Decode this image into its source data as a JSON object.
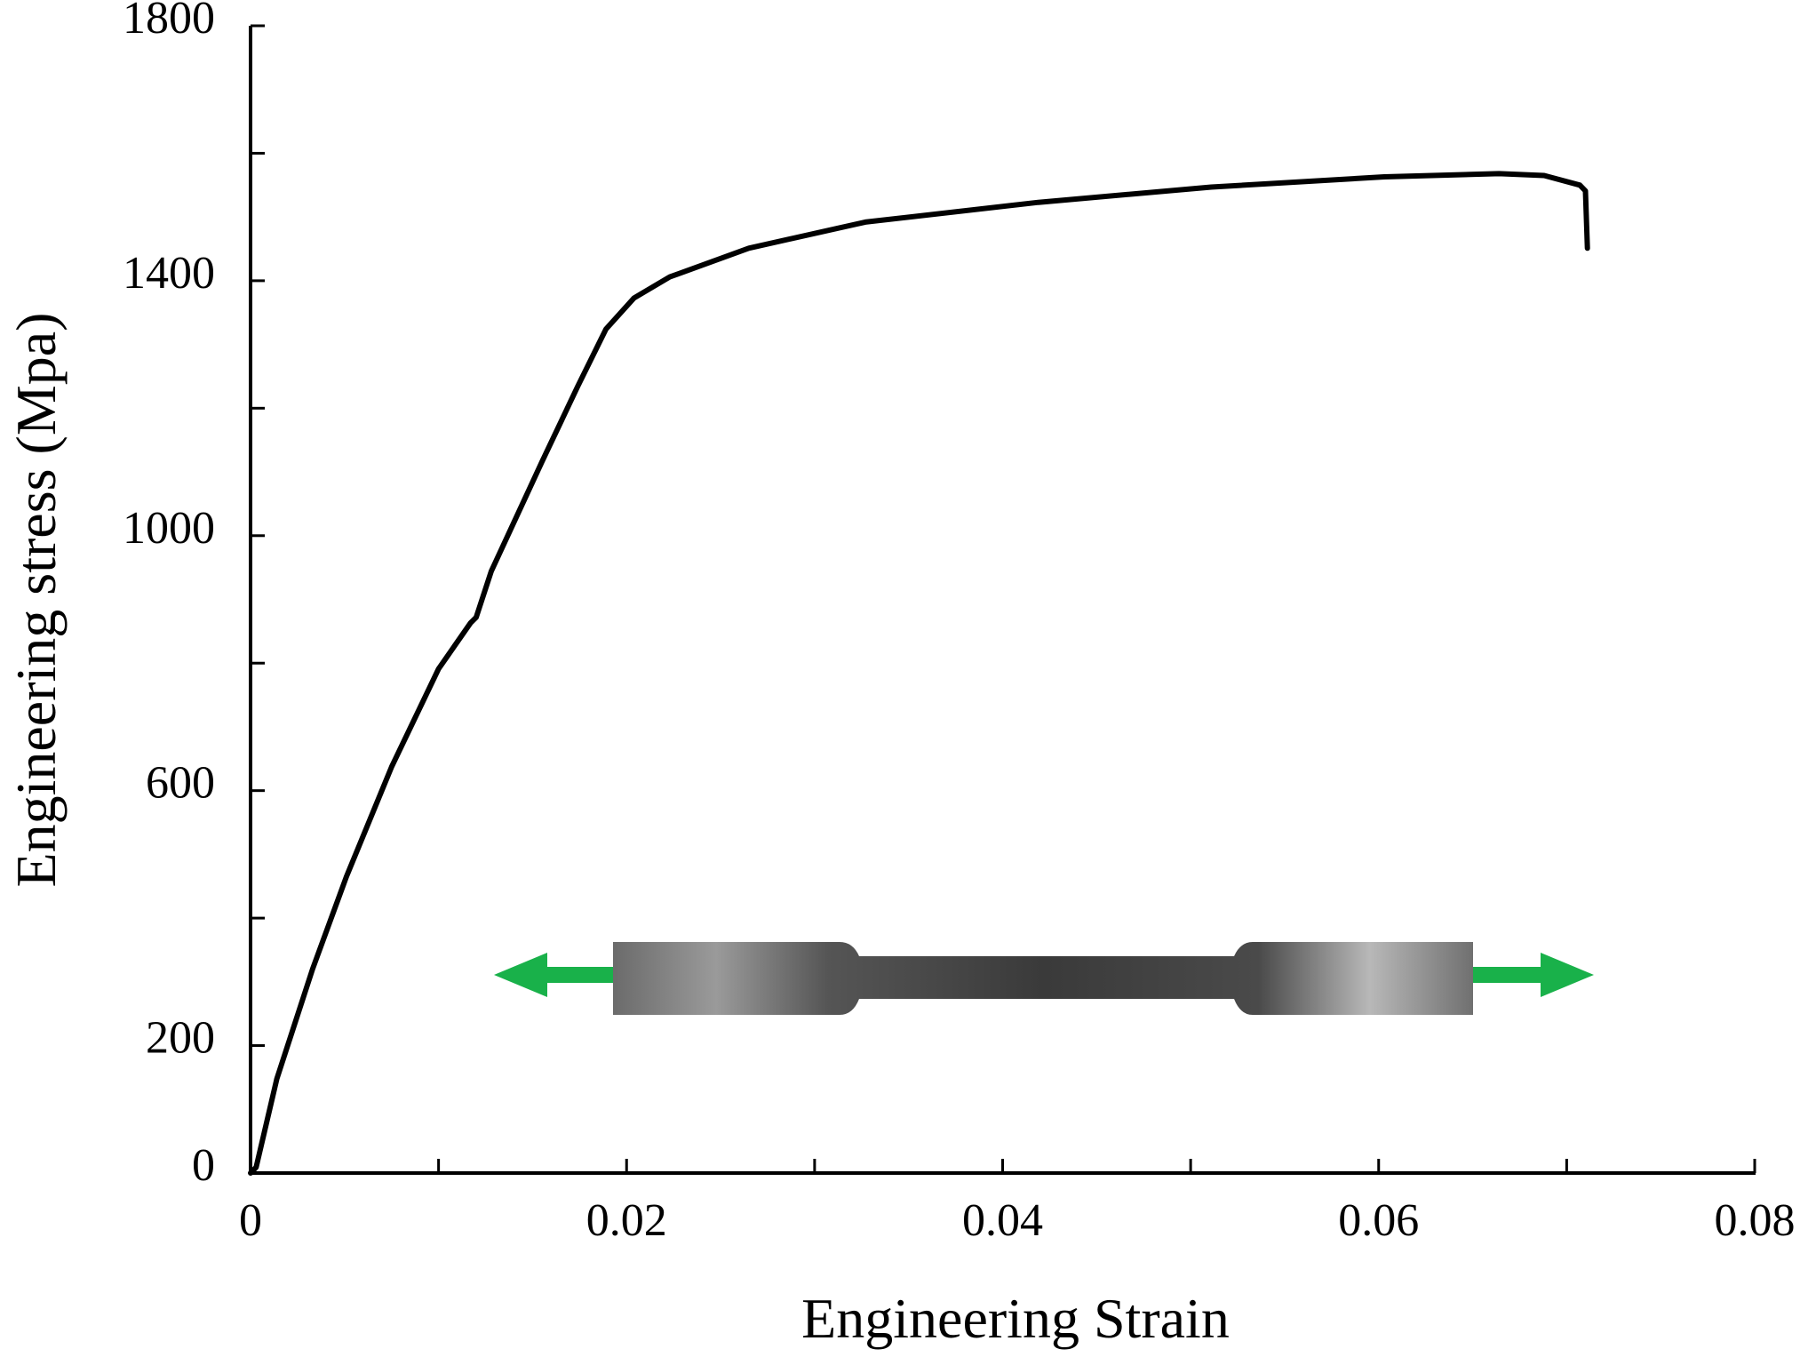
{
  "chart_data": {
    "type": "line",
    "x_label": "Engineering Strain",
    "y_label": "Engineering stress (Mpa)",
    "x": [
      0,
      0.0003,
      0.0014,
      0.0033,
      0.0051,
      0.0075,
      0.01,
      0.0117,
      0.012,
      0.0128,
      0.0155,
      0.0174,
      0.0189,
      0.0204,
      0.0223,
      0.0265,
      0.0327,
      0.0419,
      0.0511,
      0.0603,
      0.0664,
      0.0688,
      0.0707,
      0.071,
      0.0711
    ],
    "values": [
      0,
      9,
      148,
      320,
      465,
      637,
      791,
      863,
      872,
      944,
      1116,
      1234,
      1324,
      1373,
      1406,
      1451,
      1492,
      1523,
      1547,
      1563,
      1568,
      1565,
      1550,
      1541,
      1451
    ],
    "color": "#000000",
    "xlim": [
      0,
      0.08
    ],
    "xticks": [
      0,
      0.02,
      0.04,
      0.06,
      0.08
    ],
    "xminor_ticks": [
      0.01,
      0.03,
      0.05,
      0.07
    ],
    "ylim": [
      0,
      1800
    ],
    "yticks": [
      0,
      200,
      600,
      1000,
      1400,
      1800
    ],
    "yminor_ticks": [
      400,
      800,
      1200,
      1600
    ],
    "grid": false
  }
}
